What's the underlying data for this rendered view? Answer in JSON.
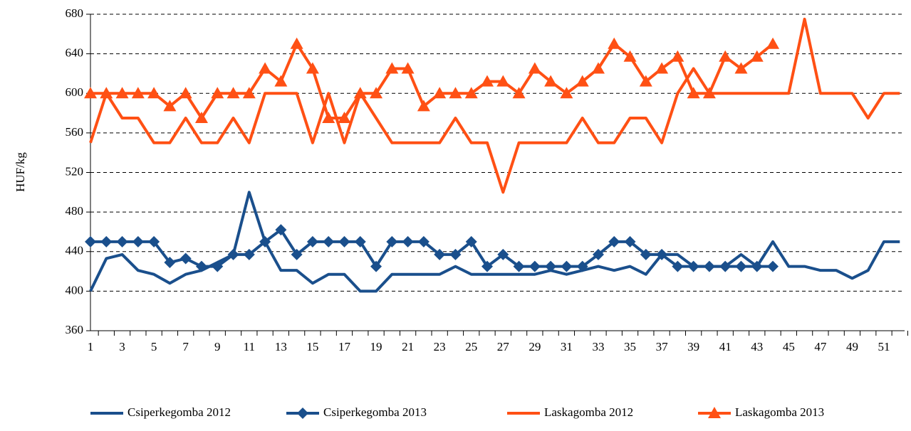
{
  "chart_data": {
    "type": "line",
    "y_label": "HUF/kg",
    "categories": [
      1,
      null,
      3,
      null,
      5,
      null,
      7,
      null,
      9,
      null,
      11,
      null,
      13,
      null,
      15,
      null,
      17,
      null,
      19,
      null,
      21,
      null,
      23,
      null,
      25,
      null,
      27,
      null,
      29,
      null,
      31,
      null,
      33,
      null,
      35,
      null,
      37,
      null,
      39,
      null,
      41,
      null,
      43,
      null,
      45,
      null,
      47,
      null,
      49,
      null,
      51,
      null
    ],
    "ylim": [
      360,
      680
    ],
    "yticks": [
      360,
      400,
      440,
      480,
      520,
      560,
      600,
      640,
      680
    ],
    "grid": true,
    "legend": "bottom",
    "series": [
      {
        "name": "Csiperkegomba 2012",
        "color": "#1a4f8c",
        "marker": "none",
        "values": [
          400,
          433,
          437,
          421,
          417,
          408,
          417,
          421,
          429,
          437,
          500,
          450,
          421,
          421,
          408,
          417,
          417,
          400,
          400,
          417,
          417,
          417,
          417,
          425,
          417,
          417,
          417,
          417,
          417,
          421,
          417,
          421,
          425,
          421,
          425,
          417,
          437,
          437,
          425,
          425,
          425,
          437,
          425,
          450,
          425,
          425,
          421,
          421,
          413,
          421,
          450,
          450
        ]
      },
      {
        "name": "Csiperkegomba 2013",
        "color": "#1a4f8c",
        "marker": "diamond",
        "values": [
          450,
          450,
          450,
          450,
          450,
          429,
          433,
          425,
          425,
          437,
          437,
          450,
          462,
          437,
          450,
          450,
          450,
          450,
          425,
          450,
          450,
          450,
          437,
          437,
          450,
          425,
          437,
          425,
          425,
          425,
          425,
          425,
          437,
          450,
          450,
          437,
          437,
          425,
          425,
          425,
          425,
          425,
          425,
          425,
          null,
          null,
          null,
          null,
          null,
          null,
          null,
          null
        ]
      },
      {
        "name": "Laskagomba 2012",
        "color": "#ff5014",
        "marker": "none",
        "values": [
          550,
          600,
          575,
          575,
          550,
          550,
          575,
          550,
          550,
          575,
          550,
          600,
          600,
          600,
          550,
          600,
          550,
          600,
          575,
          550,
          550,
          550,
          550,
          575,
          550,
          550,
          500,
          550,
          550,
          550,
          550,
          575,
          550,
          550,
          575,
          575,
          550,
          600,
          625,
          600,
          600,
          600,
          600,
          600,
          600,
          675,
          600,
          600,
          600,
          575,
          600,
          600
        ]
      },
      {
        "name": "Laskagomba 2013",
        "color": "#ff5014",
        "marker": "triangle",
        "values": [
          600,
          600,
          600,
          600,
          600,
          587,
          600,
          575,
          600,
          600,
          600,
          625,
          612,
          650,
          625,
          575,
          575,
          600,
          600,
          625,
          625,
          587,
          600,
          600,
          600,
          612,
          612,
          600,
          625,
          612,
          600,
          612,
          625,
          650,
          637,
          612,
          625,
          637,
          600,
          600,
          637,
          625,
          637,
          650,
          null,
          null,
          null,
          null,
          null,
          null,
          null,
          null
        ]
      }
    ]
  }
}
